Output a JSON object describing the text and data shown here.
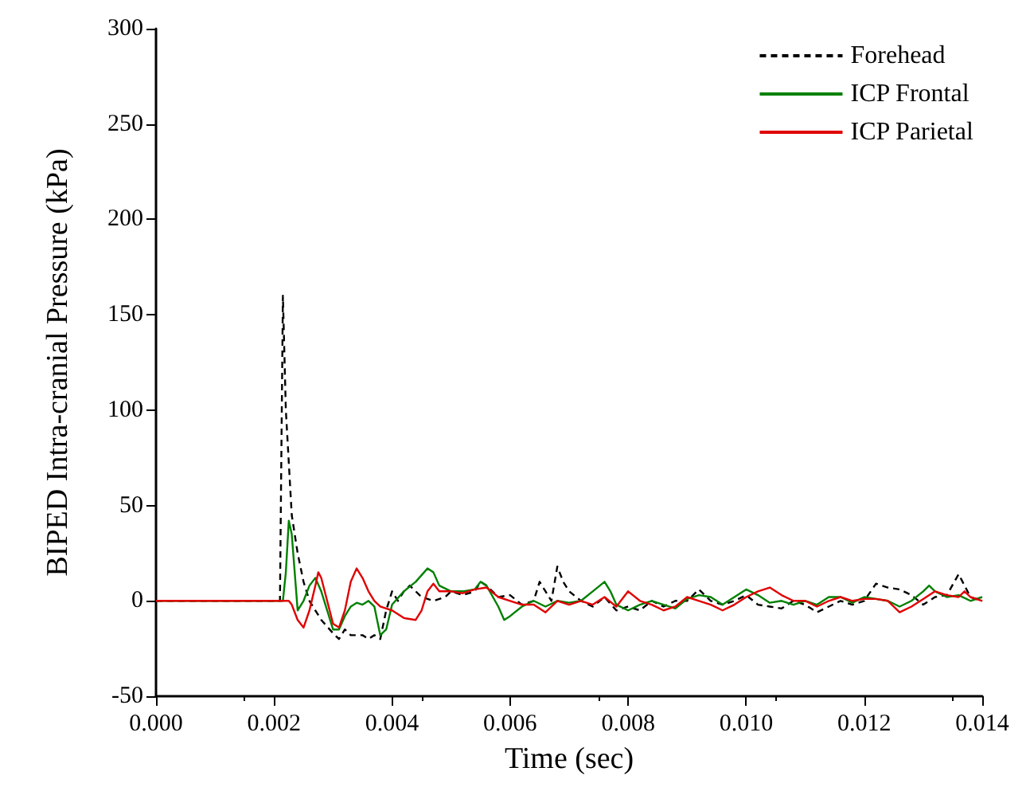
{
  "chart_data": {
    "type": "line",
    "xlabel": "Time (sec)",
    "ylabel": "BIPED Intra-cranial Pressure (kPa)",
    "xlim": [
      0,
      0.014
    ],
    "xticks": [
      {
        "value": 0,
        "label": "0.000"
      },
      {
        "value": 0.002,
        "label": "0.002"
      },
      {
        "value": 0.004,
        "label": "0.004"
      },
      {
        "value": 0.006,
        "label": "0.006"
      },
      {
        "value": 0.008,
        "label": "0.008"
      },
      {
        "value": 0.01,
        "label": "0.010"
      },
      {
        "value": 0.012,
        "label": "0.012"
      },
      {
        "value": 0.014,
        "label": "0.014"
      }
    ],
    "ylim": [
      -50,
      300
    ],
    "yticks": [
      -50,
      0,
      50,
      100,
      150,
      200,
      250,
      300
    ],
    "grid": false,
    "legend": "top right",
    "marker": "none",
    "series": [
      {
        "name": "Forehead",
        "color": "#000000",
        "line_style": "dashed",
        "x": [
          0,
          0.0021,
          0.00215,
          0.0022,
          0.0023,
          0.0024,
          0.0025,
          0.0026,
          0.0027,
          0.0028,
          0.003,
          0.0031,
          0.0032,
          0.0033,
          0.0035,
          0.0036,
          0.0037,
          0.0038,
          0.0039,
          0.004,
          0.0041,
          0.0042,
          0.0043,
          0.0045,
          0.0047,
          0.0049,
          0.005,
          0.0052,
          0.0054,
          0.0055,
          0.0056,
          0.0058,
          0.006,
          0.0062,
          0.0064,
          0.0065,
          0.0066,
          0.0067,
          0.0068,
          0.0069,
          0.007,
          0.0072,
          0.0074,
          0.0076,
          0.0078,
          0.008,
          0.0082,
          0.0084,
          0.0086,
          0.0088,
          0.009,
          0.0092,
          0.0094,
          0.0096,
          0.0098,
          0.01,
          0.0102,
          0.0104,
          0.0106,
          0.0108,
          0.011,
          0.0112,
          0.0114,
          0.0116,
          0.0118,
          0.012,
          0.0122,
          0.0124,
          0.0126,
          0.0128,
          0.013,
          0.0132,
          0.0134,
          0.0136,
          0.0137,
          0.0138,
          0.014
        ],
        "values": [
          0,
          0,
          160,
          100,
          45,
          25,
          10,
          0,
          -5,
          -10,
          -17,
          -20,
          -15,
          -18,
          -18,
          -20,
          -18,
          -20,
          -5,
          5,
          0,
          5,
          8,
          2,
          0,
          2,
          5,
          3,
          5,
          10,
          8,
          2,
          3,
          -2,
          0,
          10,
          5,
          0,
          18,
          10,
          5,
          0,
          -3,
          2,
          -5,
          -3,
          -5,
          0,
          -3,
          0,
          0,
          6,
          0,
          -2,
          0,
          3,
          -2,
          -3,
          -4,
          0,
          -2,
          -6,
          -3,
          0,
          -2,
          0,
          9,
          7,
          6,
          3,
          -2,
          2,
          3,
          14,
          8,
          2,
          0
        ]
      },
      {
        "name": "ICP Frontal",
        "color": "#008000",
        "line_style": "solid",
        "x": [
          0,
          0.00215,
          0.0022,
          0.00225,
          0.0023,
          0.00235,
          0.0024,
          0.0025,
          0.0026,
          0.0027,
          0.0028,
          0.0029,
          0.003,
          0.0031,
          0.0032,
          0.0033,
          0.0034,
          0.0035,
          0.0036,
          0.0037,
          0.0038,
          0.0039,
          0.004,
          0.0042,
          0.0044,
          0.0046,
          0.0047,
          0.0048,
          0.005,
          0.0052,
          0.0054,
          0.0055,
          0.0056,
          0.0058,
          0.0059,
          0.006,
          0.0062,
          0.0064,
          0.0066,
          0.0068,
          0.007,
          0.0072,
          0.0074,
          0.0076,
          0.0077,
          0.0078,
          0.008,
          0.0082,
          0.0084,
          0.0086,
          0.0088,
          0.009,
          0.0092,
          0.0094,
          0.0096,
          0.0098,
          0.01,
          0.0102,
          0.0104,
          0.0106,
          0.0108,
          0.011,
          0.0112,
          0.0114,
          0.0116,
          0.0118,
          0.012,
          0.0122,
          0.0124,
          0.0126,
          0.0128,
          0.013,
          0.0131,
          0.0132,
          0.0134,
          0.0136,
          0.0138,
          0.014
        ],
        "values": [
          0,
          0,
          15,
          42,
          35,
          15,
          -5,
          0,
          8,
          12,
          5,
          -5,
          -15,
          -15,
          -8,
          -3,
          -1,
          -2,
          0,
          -3,
          -18,
          -15,
          -2,
          5,
          10,
          17,
          15,
          8,
          5,
          5,
          6,
          10,
          8,
          -3,
          -10,
          -8,
          -3,
          0,
          -3,
          0,
          -1,
          0,
          5,
          10,
          5,
          -2,
          -5,
          -2,
          0,
          -2,
          -4,
          1,
          3,
          2,
          -2,
          2,
          6,
          3,
          -1,
          0,
          -2,
          0,
          -2,
          2,
          2,
          -1,
          2,
          1,
          0,
          -3,
          0,
          5,
          8,
          5,
          2,
          3,
          0,
          2
        ]
      },
      {
        "name": "ICP Parietal",
        "color": "#e00000",
        "line_style": "solid",
        "x": [
          0,
          0.00225,
          0.0023,
          0.0024,
          0.0025,
          0.0026,
          0.0027,
          0.00275,
          0.0028,
          0.0029,
          0.003,
          0.0031,
          0.0032,
          0.0033,
          0.0034,
          0.0035,
          0.0036,
          0.0037,
          0.0038,
          0.004,
          0.0042,
          0.0044,
          0.0045,
          0.0046,
          0.0047,
          0.0048,
          0.005,
          0.0052,
          0.0054,
          0.0056,
          0.0058,
          0.006,
          0.0062,
          0.0064,
          0.0066,
          0.0068,
          0.007,
          0.0072,
          0.0074,
          0.0076,
          0.0078,
          0.008,
          0.0082,
          0.0084,
          0.0086,
          0.0088,
          0.009,
          0.0092,
          0.0094,
          0.0096,
          0.0098,
          0.01,
          0.0102,
          0.0104,
          0.0106,
          0.0108,
          0.011,
          0.0112,
          0.0114,
          0.0116,
          0.0118,
          0.012,
          0.0122,
          0.0124,
          0.0126,
          0.0128,
          0.013,
          0.0132,
          0.0134,
          0.0136,
          0.0137,
          0.0138,
          0.014
        ],
        "values": [
          0,
          0,
          -2,
          -10,
          -14,
          -5,
          8,
          15,
          12,
          0,
          -12,
          -14,
          -5,
          10,
          17,
          12,
          5,
          0,
          -3,
          -5,
          -9,
          -10,
          -5,
          5,
          9,
          5,
          5,
          4,
          6,
          7,
          2,
          0,
          -2,
          -2,
          -6,
          0,
          -2,
          0,
          -2,
          2,
          -3,
          5,
          0,
          -2,
          -5,
          -3,
          2,
          0,
          -2,
          -5,
          -2,
          2,
          5,
          7,
          3,
          0,
          0,
          -3,
          0,
          2,
          0,
          1,
          1,
          0,
          -6,
          -3,
          1,
          5,
          3,
          2,
          5,
          2,
          0
        ]
      }
    ]
  }
}
